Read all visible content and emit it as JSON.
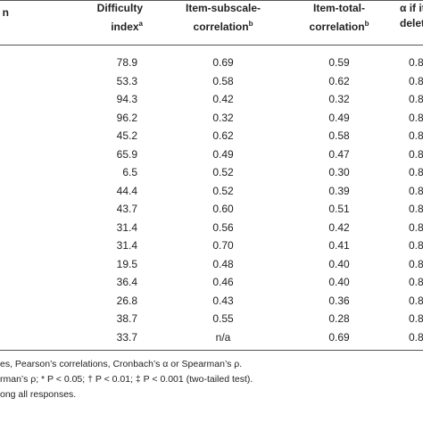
{
  "table": {
    "header": [
      {
        "lines": [
          "n"
        ]
      },
      {
        "lines": [
          "Difficulty",
          "index"
        ],
        "sup": "a"
      },
      {
        "lines": [
          "Item-subscale-",
          "correlation"
        ],
        "sup": "b"
      },
      {
        "lines": [
          "Item-total-",
          "correlation"
        ],
        "sup": "b"
      },
      {
        "lines": [
          "α if it",
          "delet"
        ]
      }
    ],
    "rows": [
      [
        "78.9",
        "0.69",
        "0.59",
        "0.8"
      ],
      [
        "53.3",
        "0.58",
        "0.62",
        "0.8"
      ],
      [
        "94.3",
        "0.42",
        "0.32",
        "0.8"
      ],
      [
        "96.2",
        "0.32",
        "0.49",
        "0.8"
      ],
      [
        "45.2",
        "0.62",
        "0.58",
        "0.8"
      ],
      [
        "65.9",
        "0.49",
        "0.47",
        "0.8"
      ],
      [
        "6.5",
        "0.52",
        "0.30",
        "0.8"
      ],
      [
        "44.4",
        "0.52",
        "0.39",
        "0.8"
      ],
      [
        "43.7",
        "0.60",
        "0.51",
        "0.8"
      ],
      [
        "31.4",
        "0.56",
        "0.42",
        "0.8"
      ],
      [
        "31.4",
        "0.70",
        "0.41",
        "0.8"
      ],
      [
        "19.5",
        "0.48",
        "0.40",
        "0.8"
      ],
      [
        "36.4",
        "0.46",
        "0.40",
        "0.8"
      ],
      [
        "26.8",
        "0.43",
        "0.36",
        "0.8"
      ],
      [
        "38.7",
        "0.55",
        "0.28",
        "0.8"
      ],
      [
        "33.7",
        "n/a",
        "0.69",
        "0.8"
      ]
    ],
    "footnotes": [
      "es, Pearson’s correlations, Cronbach’s α or Spearman’s ρ.",
      "rman’s ρ; * P < 0.05; † P < 0.01; ‡ P < 0.001 (two-tailed test).",
      "ong all responses."
    ]
  }
}
